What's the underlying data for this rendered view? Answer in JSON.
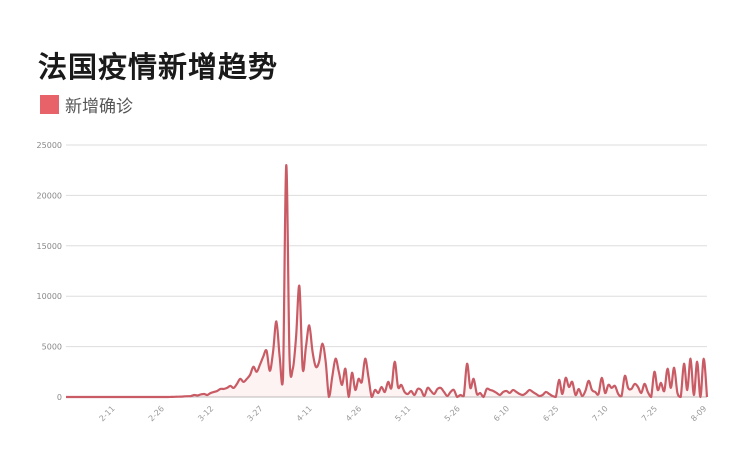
{
  "chart_data": {
    "type": "line",
    "title": "法国疫情新增趋势",
    "xlabel": "",
    "ylabel": "",
    "ylim": [
      0,
      25000
    ],
    "yticks": [
      "0",
      "5000",
      "10000",
      "15000",
      "20000",
      "25000"
    ],
    "xtick_labels": [
      "2-11",
      "2-26",
      "3-12",
      "3-27",
      "4-11",
      "4-26",
      "5-11",
      "5-26",
      "6-10",
      "6-25",
      "7-10",
      "7-25",
      "8-09"
    ],
    "x_start": "1-27",
    "x_end": "8-09",
    "grid": true,
    "legend_position": "top-left",
    "series": [
      {
        "name": "新增确诊",
        "color": "#c95b65",
        "values": [
          0,
          0,
          0,
          0,
          0,
          0,
          0,
          0,
          0,
          0,
          0,
          0,
          0,
          0,
          0,
          0,
          0,
          0,
          0,
          0,
          0,
          0,
          0,
          0,
          0,
          0,
          0,
          0,
          0,
          0,
          0,
          0,
          10,
          20,
          30,
          40,
          60,
          80,
          90,
          200,
          150,
          250,
          300,
          200,
          400,
          500,
          600,
          800,
          800,
          900,
          1100,
          900,
          1300,
          1800,
          1500,
          1800,
          2200,
          3000,
          2500,
          3200,
          4000,
          4600,
          2600,
          4500,
          7500,
          4000,
          1800,
          23000,
          4000,
          2800,
          6000,
          11000,
          2800,
          5000,
          7100,
          4500,
          3000,
          3500,
          5300,
          3500,
          0,
          2000,
          3800,
          2500,
          1200,
          2800,
          0,
          2400,
          700,
          1800,
          1500,
          3800,
          2000,
          0,
          700,
          400,
          1000,
          500,
          1500,
          900,
          3500,
          1000,
          1200,
          500,
          300,
          600,
          200,
          800,
          700,
          100,
          900,
          600,
          300,
          800,
          900,
          500,
          100,
          500,
          700,
          0,
          200,
          100,
          3300,
          900,
          1800,
          300,
          400,
          0,
          800,
          700,
          600,
          400,
          200,
          500,
          600,
          400,
          700,
          500,
          300,
          200,
          400,
          700,
          500,
          300,
          100,
          200,
          500,
          300,
          100,
          0,
          1700,
          300,
          1900,
          1000,
          1500,
          200,
          800,
          100,
          600,
          1600,
          700,
          500,
          300,
          1900,
          400,
          1200,
          900,
          1100,
          300,
          100,
          2100,
          900,
          800,
          1300,
          1000,
          400,
          1300,
          500,
          0,
          2500,
          700,
          1400,
          600,
          2800,
          900,
          2900,
          400,
          0,
          3300,
          700,
          3800,
          200,
          3500,
          0,
          3800,
          0
        ]
      }
    ]
  },
  "legend_color": "#e8626a"
}
